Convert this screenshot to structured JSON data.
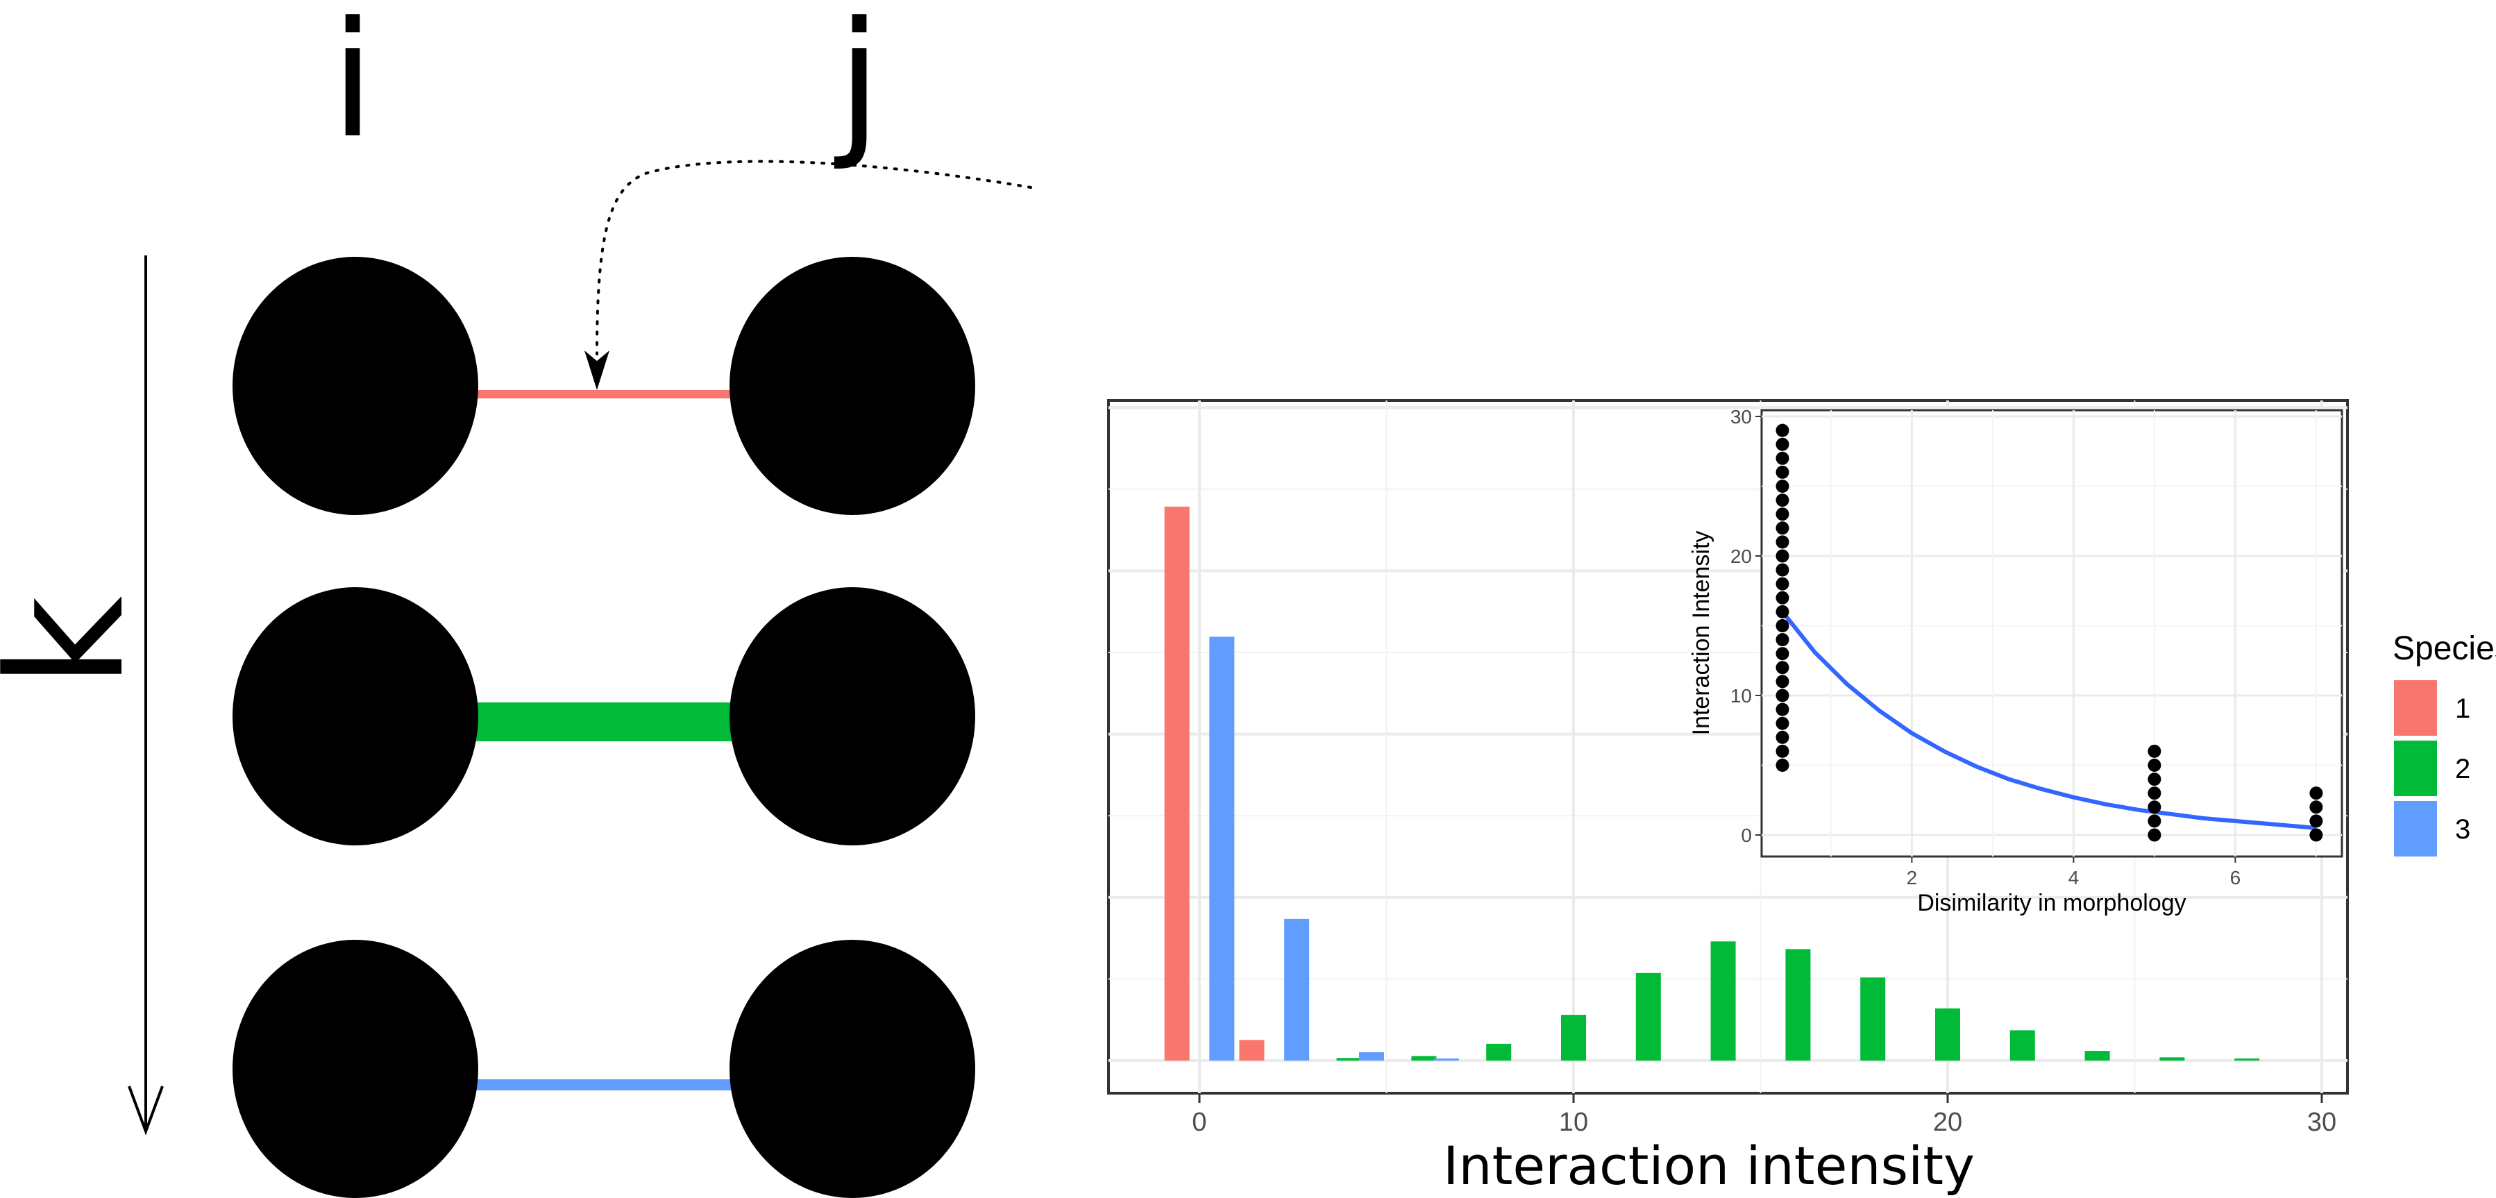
{
  "diagram": {
    "labels": {
      "i": "i",
      "j": "j",
      "k": "k"
    },
    "links": [
      {
        "species": "1",
        "color": "#F8766D"
      },
      {
        "species": "2",
        "color": "#00BA38"
      },
      {
        "species": "3",
        "color": "#619CFF"
      }
    ]
  },
  "chart_data": [
    {
      "type": "bar",
      "xlabel": "Interaction intensity",
      "ylabel": "",
      "x_ticks": [
        "0",
        "10",
        "20",
        "30"
      ],
      "xlim": [
        -2.5,
        30
      ],
      "ylim": [
        0,
        1.0
      ],
      "grid": true,
      "legend": {
        "title": "Species",
        "placement": "right",
        "entries": [
          {
            "label": "1",
            "color": "#F8766D"
          },
          {
            "label": "2",
            "color": "#00BA38"
          },
          {
            "label": "3",
            "color": "#619CFF"
          }
        ]
      },
      "series": [
        {
          "name": "1",
          "color": "#F8766D",
          "points": [
            {
              "x": -0.6,
              "y": 0.86
            },
            {
              "x": 1.4,
              "y": 0.032
            }
          ]
        },
        {
          "name": "2",
          "color": "#00BA38",
          "points": [
            {
              "x": 4.0,
              "y": 0.004
            },
            {
              "x": 6.0,
              "y": 0.007
            },
            {
              "x": 8.0,
              "y": 0.026
            },
            {
              "x": 10.0,
              "y": 0.071
            },
            {
              "x": 12.0,
              "y": 0.136
            },
            {
              "x": 14.0,
              "y": 0.185
            },
            {
              "x": 16.0,
              "y": 0.173
            },
            {
              "x": 18.0,
              "y": 0.129
            },
            {
              "x": 20.0,
              "y": 0.081
            },
            {
              "x": 22.0,
              "y": 0.047
            },
            {
              "x": 24.0,
              "y": 0.015
            },
            {
              "x": 26.0,
              "y": 0.005
            },
            {
              "x": 28.0,
              "y": 0.003
            }
          ]
        },
        {
          "name": "3",
          "color": "#619CFF",
          "points": [
            {
              "x": 0.6,
              "y": 0.658
            },
            {
              "x": 2.6,
              "y": 0.22
            },
            {
              "x": 4.6,
              "y": 0.013
            },
            {
              "x": 6.6,
              "y": 0.002
            }
          ]
        }
      ]
    },
    {
      "type": "scatter",
      "xlabel": "Disimilarity in morphology",
      "ylabel": "Interaction Intensity",
      "x_ticks": [
        "2",
        "4",
        "6"
      ],
      "y_ticks": [
        "0",
        "10",
        "20",
        "30"
      ],
      "xlim": [
        0.2,
        7.4
      ],
      "ylim": [
        -1.5,
        30.2
      ],
      "grid": true,
      "points_color": "#000000",
      "fit_color": "#3366FF",
      "points": [
        {
          "x": 0.4,
          "y": 5
        },
        {
          "x": 0.4,
          "y": 6
        },
        {
          "x": 0.4,
          "y": 7
        },
        {
          "x": 0.4,
          "y": 8
        },
        {
          "x": 0.4,
          "y": 9
        },
        {
          "x": 0.4,
          "y": 10
        },
        {
          "x": 0.4,
          "y": 11
        },
        {
          "x": 0.4,
          "y": 12
        },
        {
          "x": 0.4,
          "y": 13
        },
        {
          "x": 0.4,
          "y": 14
        },
        {
          "x": 0.4,
          "y": 15
        },
        {
          "x": 0.4,
          "y": 16
        },
        {
          "x": 0.4,
          "y": 17
        },
        {
          "x": 0.4,
          "y": 18
        },
        {
          "x": 0.4,
          "y": 19
        },
        {
          "x": 0.4,
          "y": 20
        },
        {
          "x": 0.4,
          "y": 21
        },
        {
          "x": 0.4,
          "y": 22
        },
        {
          "x": 0.4,
          "y": 23
        },
        {
          "x": 0.4,
          "y": 24
        },
        {
          "x": 0.4,
          "y": 25
        },
        {
          "x": 0.4,
          "y": 26
        },
        {
          "x": 0.4,
          "y": 27
        },
        {
          "x": 0.4,
          "y": 28
        },
        {
          "x": 0.4,
          "y": 29
        },
        {
          "x": 5.0,
          "y": 0
        },
        {
          "x": 5.0,
          "y": 1
        },
        {
          "x": 5.0,
          "y": 2
        },
        {
          "x": 5.0,
          "y": 3
        },
        {
          "x": 5.0,
          "y": 4
        },
        {
          "x": 5.0,
          "y": 5
        },
        {
          "x": 5.0,
          "y": 6
        },
        {
          "x": 7.0,
          "y": 0
        },
        {
          "x": 7.0,
          "y": 1
        },
        {
          "x": 7.0,
          "y": 2
        },
        {
          "x": 7.0,
          "y": 3
        }
      ],
      "fit": [
        {
          "x": 0.4,
          "y": 16.0
        },
        {
          "x": 0.8,
          "y": 13.1
        },
        {
          "x": 1.2,
          "y": 10.8
        },
        {
          "x": 1.6,
          "y": 8.9
        },
        {
          "x": 2.0,
          "y": 7.3
        },
        {
          "x": 2.4,
          "y": 6.0
        },
        {
          "x": 2.8,
          "y": 4.9
        },
        {
          "x": 3.2,
          "y": 4.0
        },
        {
          "x": 3.6,
          "y": 3.3
        },
        {
          "x": 4.0,
          "y": 2.7
        },
        {
          "x": 4.4,
          "y": 2.2
        },
        {
          "x": 4.8,
          "y": 1.8
        },
        {
          "x": 5.2,
          "y": 1.5
        },
        {
          "x": 5.6,
          "y": 1.2
        },
        {
          "x": 6.0,
          "y": 1.0
        },
        {
          "x": 6.4,
          "y": 0.8
        },
        {
          "x": 6.8,
          "y": 0.6
        },
        {
          "x": 7.0,
          "y": 0.5
        }
      ]
    }
  ]
}
